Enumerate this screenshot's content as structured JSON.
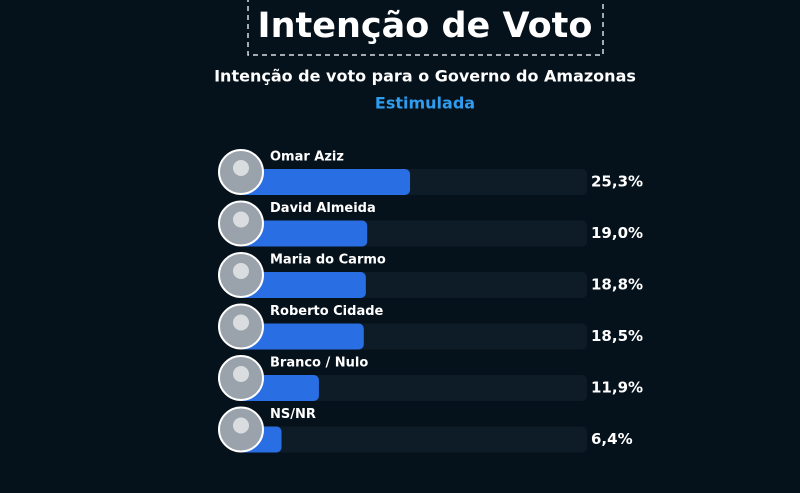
{
  "chart_data": {
    "type": "bar",
    "orientation": "horizontal",
    "title": "Intenção de Voto",
    "subtitle": "Intenção de voto para o Governo do Amazonas",
    "note": "Estimulada",
    "categories": [
      "Omar Aziz",
      "David Almeida",
      "Maria do Carmo",
      "Roberto Cidade",
      "Branco / Nulo",
      "NS/NR"
    ],
    "values": [
      25.3,
      19.0,
      18.8,
      18.5,
      11.9,
      6.4
    ],
    "value_labels": [
      "25,3%",
      "19,0%",
      "18,8%",
      "18,5%",
      "11,9%",
      "6,4%"
    ],
    "color": "#2a6ee3"
  }
}
